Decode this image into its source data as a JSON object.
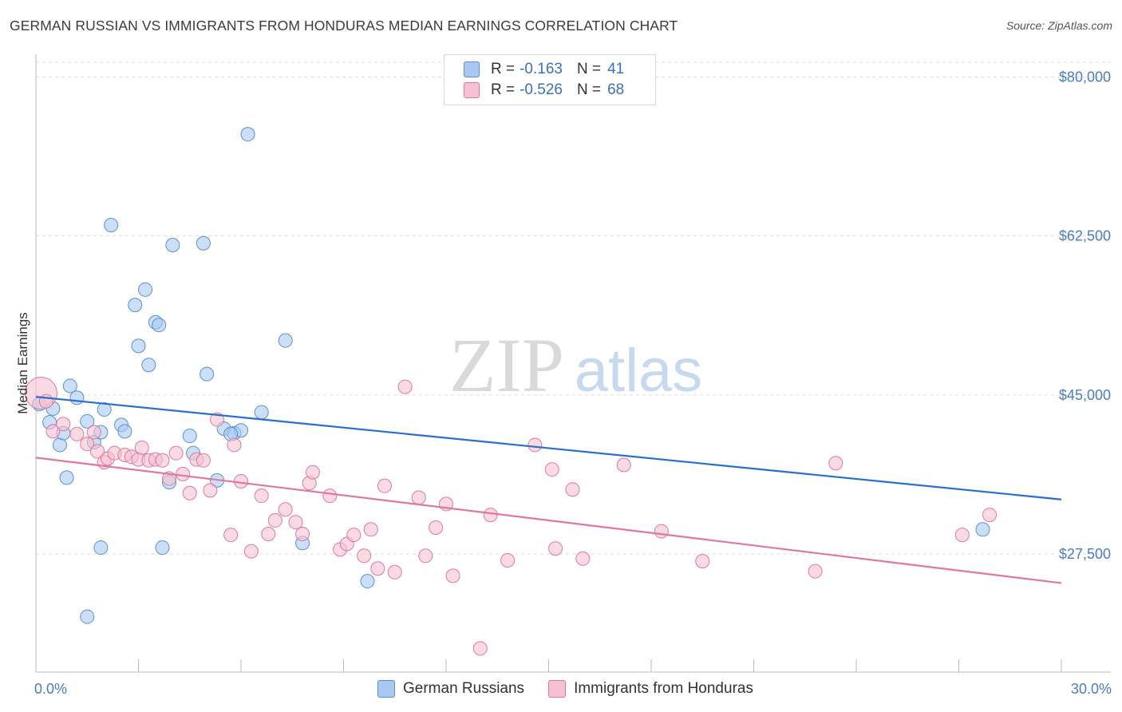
{
  "header": {
    "title": "GERMAN RUSSIAN VS IMMIGRANTS FROM HONDURAS MEDIAN EARNINGS CORRELATION CHART",
    "source": "Source: ZipAtlas.com"
  },
  "watermark": {
    "zip": "ZIP",
    "atlas": "atlas"
  },
  "legend": {
    "r_label": "R =",
    "n_label": "N =",
    "rows": [
      {
        "r": "-0.163",
        "n": "41",
        "color": "#a9c9f2",
        "border": "#5b8fd6"
      },
      {
        "r": "-0.526",
        "n": "68",
        "color": "#f7c1d1",
        "border": "#e0789b"
      }
    ]
  },
  "chart_data": {
    "type": "scatter",
    "xlabel": "",
    "ylabel": "Median Earnings",
    "xlim": [
      0,
      30
    ],
    "ylim": [
      14500,
      82500
    ],
    "x_tick_labels": [
      "0.0%",
      "30.0%"
    ],
    "y_ticks": [
      {
        "value": 80000,
        "label": "$80,000"
      },
      {
        "value": 62500,
        "label": "$62,500"
      },
      {
        "value": 45000,
        "label": "$45,000"
      },
      {
        "value": 27500,
        "label": "$27,500"
      }
    ],
    "grid": true,
    "series": [
      {
        "name": "German Russians",
        "color": "#a9c9f2",
        "stroke": "#5b8fd6",
        "line_color": "#2a6fcf",
        "trend": {
          "x": [
            0,
            30
          ],
          "y": [
            44800,
            33500
          ]
        },
        "points": [
          [
            0.1,
            44000
          ],
          [
            0.5,
            43500
          ],
          [
            0.4,
            42000
          ],
          [
            0.7,
            39500
          ],
          [
            0.8,
            40800
          ],
          [
            1.0,
            46000
          ],
          [
            1.2,
            44700
          ],
          [
            0.9,
            35900
          ],
          [
            1.5,
            42100
          ],
          [
            1.7,
            39800
          ],
          [
            1.9,
            40900
          ],
          [
            2.0,
            43400
          ],
          [
            2.5,
            41700
          ],
          [
            2.6,
            41000
          ],
          [
            2.2,
            63700
          ],
          [
            2.9,
            54900
          ],
          [
            3.0,
            50400
          ],
          [
            3.2,
            56600
          ],
          [
            3.3,
            48300
          ],
          [
            3.5,
            53000
          ],
          [
            3.6,
            52700
          ],
          [
            4.0,
            61500
          ],
          [
            3.9,
            35400
          ],
          [
            4.5,
            40500
          ],
          [
            4.6,
            38600
          ],
          [
            4.9,
            61700
          ],
          [
            5.0,
            47300
          ],
          [
            5.3,
            35600
          ],
          [
            5.5,
            41300
          ],
          [
            5.8,
            40800
          ],
          [
            6.0,
            41100
          ],
          [
            6.2,
            73700
          ],
          [
            6.6,
            43100
          ],
          [
            7.3,
            51000
          ],
          [
            7.8,
            28700
          ],
          [
            3.7,
            28200
          ],
          [
            1.9,
            28200
          ],
          [
            1.5,
            20600
          ],
          [
            9.7,
            24500
          ],
          [
            27.7,
            30200
          ],
          [
            5.7,
            40700
          ]
        ]
      },
      {
        "name": "Immigrants from Honduras",
        "color": "#f7c1d1",
        "stroke": "#e0789b",
        "line_color": "#e0789b",
        "trend": {
          "x": [
            0,
            30
          ],
          "y": [
            38100,
            24300
          ]
        },
        "points": [
          [
            0.15,
            45200
          ],
          [
            0.3,
            44300
          ],
          [
            0.5,
            41000
          ],
          [
            0.8,
            41800
          ],
          [
            1.2,
            40700
          ],
          [
            1.5,
            39600
          ],
          [
            1.7,
            40900
          ],
          [
            1.8,
            38800
          ],
          [
            2.0,
            37600
          ],
          [
            2.1,
            38000
          ],
          [
            2.3,
            38600
          ],
          [
            2.6,
            38400
          ],
          [
            2.8,
            38200
          ],
          [
            3.0,
            37900
          ],
          [
            3.1,
            39200
          ],
          [
            3.3,
            37800
          ],
          [
            3.5,
            37900
          ],
          [
            3.7,
            37800
          ],
          [
            3.9,
            35800
          ],
          [
            4.1,
            38600
          ],
          [
            4.3,
            36300
          ],
          [
            4.5,
            34200
          ],
          [
            4.7,
            37900
          ],
          [
            4.9,
            37800
          ],
          [
            5.1,
            34500
          ],
          [
            5.3,
            42300
          ],
          [
            5.7,
            29600
          ],
          [
            5.8,
            39500
          ],
          [
            6.0,
            35500
          ],
          [
            6.3,
            27800
          ],
          [
            6.6,
            33900
          ],
          [
            6.8,
            29700
          ],
          [
            7.0,
            31200
          ],
          [
            7.3,
            32400
          ],
          [
            7.6,
            31000
          ],
          [
            7.8,
            29700
          ],
          [
            8.0,
            35300
          ],
          [
            8.1,
            36500
          ],
          [
            8.6,
            33900
          ],
          [
            8.9,
            28000
          ],
          [
            9.1,
            28600
          ],
          [
            9.3,
            29600
          ],
          [
            9.6,
            27300
          ],
          [
            9.8,
            30200
          ],
          [
            10.0,
            25900
          ],
          [
            10.2,
            35000
          ],
          [
            10.5,
            25500
          ],
          [
            10.8,
            45900
          ],
          [
            11.2,
            33700
          ],
          [
            11.4,
            27300
          ],
          [
            11.7,
            30400
          ],
          [
            12.0,
            33000
          ],
          [
            12.2,
            25100
          ],
          [
            13.0,
            17100
          ],
          [
            13.3,
            31800
          ],
          [
            13.8,
            26800
          ],
          [
            14.6,
            39500
          ],
          [
            15.1,
            36800
          ],
          [
            15.2,
            28100
          ],
          [
            15.7,
            34600
          ],
          [
            16.0,
            27000
          ],
          [
            17.2,
            37300
          ],
          [
            18.3,
            30000
          ],
          [
            19.5,
            26700
          ],
          [
            22.8,
            25600
          ],
          [
            23.4,
            37500
          ],
          [
            27.1,
            29600
          ],
          [
            27.9,
            31800
          ]
        ]
      }
    ]
  },
  "bottom_legend": [
    {
      "label": "German Russians",
      "color": "#a9c9f2",
      "border": "#5b8fd6"
    },
    {
      "label": "Immigrants from Honduras",
      "color": "#f7c1d1",
      "border": "#e0789b"
    }
  ]
}
